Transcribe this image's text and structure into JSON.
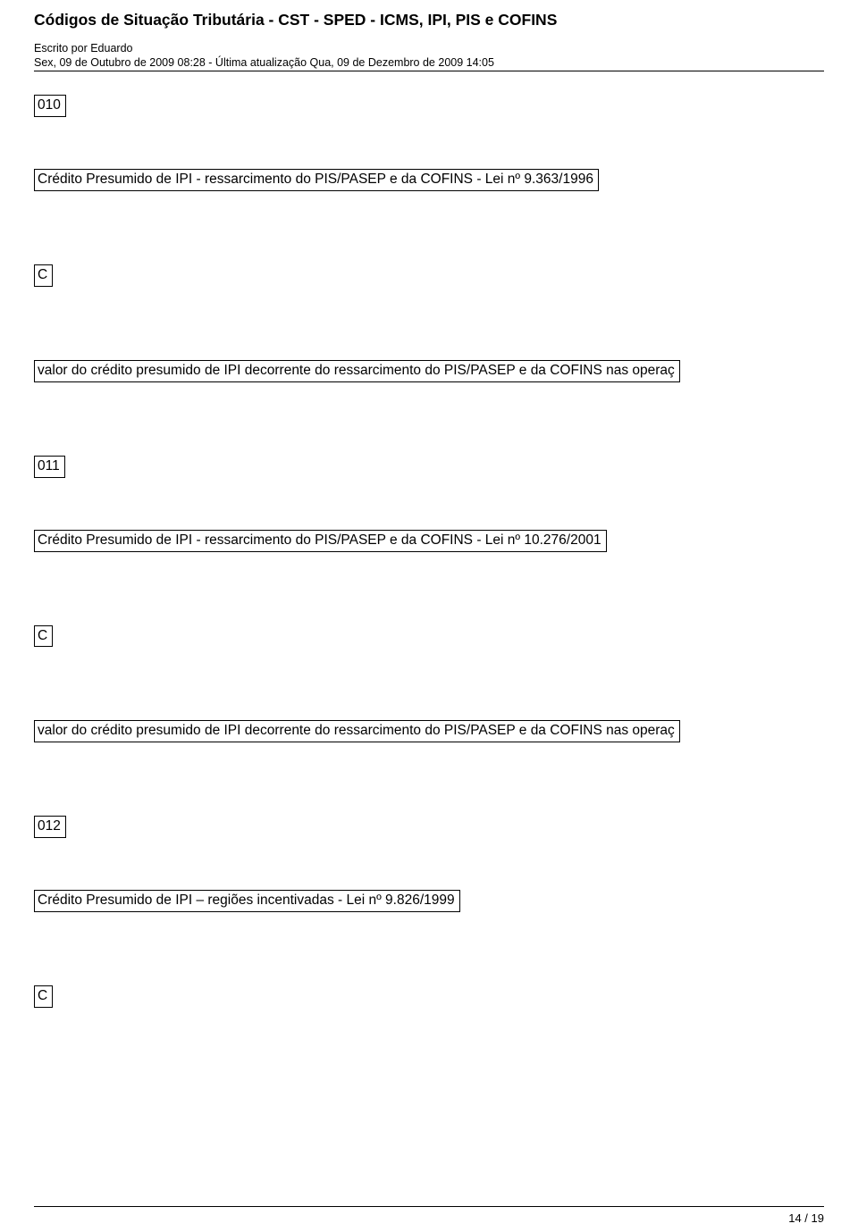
{
  "header": {
    "title": "Códigos de Situação Tributária - CST - SPED - ICMS, IPI, PIS e COFINS",
    "author": "Escrito por Eduardo",
    "dateline": "Sex, 09 de Outubro de 2009 08:28 - Última atualização Qua, 09 de Dezembro de 2009 14:05"
  },
  "cells": {
    "c010": "010",
    "credito_9363": "Crédito Presumido de IPI - ressarcimento do PIS/PASEP e da COFINS - Lei nº 9.363/1996",
    "c_1": "C",
    "valor_1": "valor do crédito presumido de IPI decorrente do ressarcimento do PIS/PASEP e da COFINS nas operaç",
    "c011": "011",
    "credito_10276": "Crédito Presumido de IPI - ressarcimento do PIS/PASEP e da COFINS - Lei nº 10.276/2001",
    "c_2": "C",
    "valor_2": "valor do crédito presumido de IPI decorrente do ressarcimento do PIS/PASEP e da COFINS nas operaç",
    "c012": "012",
    "credito_9826": "Crédito Presumido de IPI – regiões incentivadas - Lei nº 9.826/1999",
    "c_3": "C"
  },
  "footer": {
    "pagenum": "14 / 19"
  }
}
